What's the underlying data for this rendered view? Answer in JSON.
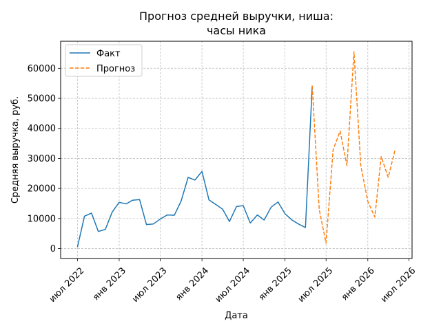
{
  "chart_data": {
    "type": "line",
    "title_lines": [
      "Прогноз средней выручки, ниша:",
      "часы ника"
    ],
    "xlabel": "Дата",
    "ylabel": "Средняя выручка, руб.",
    "x_ticks": [
      {
        "date": "2022-07-01",
        "label": "июл 2022"
      },
      {
        "date": "2023-01-01",
        "label": "янв 2023"
      },
      {
        "date": "2023-07-01",
        "label": "июл 2023"
      },
      {
        "date": "2024-01-01",
        "label": "янв 2024"
      },
      {
        "date": "2024-07-01",
        "label": "июл 2024"
      },
      {
        "date": "2025-01-01",
        "label": "янв 2025"
      },
      {
        "date": "2025-07-01",
        "label": "июл 2025"
      },
      {
        "date": "2026-01-01",
        "label": "янв 2026"
      },
      {
        "date": "2026-07-01",
        "label": "июл 2026"
      }
    ],
    "y_ticks": [
      0,
      10000,
      20000,
      30000,
      40000,
      50000,
      60000
    ],
    "xlim": [
      "2022-04-18",
      "2026-07-15"
    ],
    "ylim": [
      -3300,
      69000
    ],
    "grid": true,
    "legend_position": "top-left",
    "series": [
      {
        "name": "Факт",
        "color": "#1f77b4",
        "style": "solid",
        "points": [
          [
            "2022-07-01",
            500
          ],
          [
            "2022-08-01",
            10800
          ],
          [
            "2022-09-01",
            11800
          ],
          [
            "2022-10-01",
            5700
          ],
          [
            "2022-11-01",
            6400
          ],
          [
            "2022-12-01",
            12100
          ],
          [
            "2023-01-01",
            15400
          ],
          [
            "2023-02-01",
            14900
          ],
          [
            "2023-03-01",
            16100
          ],
          [
            "2023-04-01",
            16300
          ],
          [
            "2023-05-01",
            8000
          ],
          [
            "2023-06-01",
            8200
          ],
          [
            "2023-07-01",
            9800
          ],
          [
            "2023-08-01",
            11200
          ],
          [
            "2023-09-01",
            11100
          ],
          [
            "2023-10-01",
            15800
          ],
          [
            "2023-11-01",
            23700
          ],
          [
            "2023-12-01",
            22800
          ],
          [
            "2024-01-01",
            25700
          ],
          [
            "2024-02-01",
            16200
          ],
          [
            "2024-03-01",
            14700
          ],
          [
            "2024-04-01",
            13100
          ],
          [
            "2024-05-01",
            9000
          ],
          [
            "2024-06-01",
            14000
          ],
          [
            "2024-07-01",
            14300
          ],
          [
            "2024-08-01",
            8500
          ],
          [
            "2024-09-01",
            11200
          ],
          [
            "2024-10-01",
            9500
          ],
          [
            "2024-11-01",
            13800
          ],
          [
            "2024-12-01",
            15500
          ],
          [
            "2025-01-01",
            11600
          ],
          [
            "2025-02-01",
            9500
          ],
          [
            "2025-03-01",
            8200
          ],
          [
            "2025-04-01",
            7000
          ],
          [
            "2025-05-01",
            54200
          ]
        ]
      },
      {
        "name": "Прогноз",
        "color": "#ff7f0e",
        "style": "dashed",
        "points": [
          [
            "2025-05-01",
            54200
          ],
          [
            "2025-06-01",
            13000
          ],
          [
            "2025-07-01",
            1800
          ],
          [
            "2025-08-01",
            32800
          ],
          [
            "2025-09-01",
            39100
          ],
          [
            "2025-10-01",
            27600
          ],
          [
            "2025-11-01",
            65500
          ],
          [
            "2025-12-01",
            27600
          ],
          [
            "2026-01-01",
            15700
          ],
          [
            "2026-02-01",
            10500
          ],
          [
            "2026-03-01",
            30600
          ],
          [
            "2026-04-01",
            23700
          ],
          [
            "2026-05-01",
            32800
          ]
        ]
      }
    ]
  }
}
